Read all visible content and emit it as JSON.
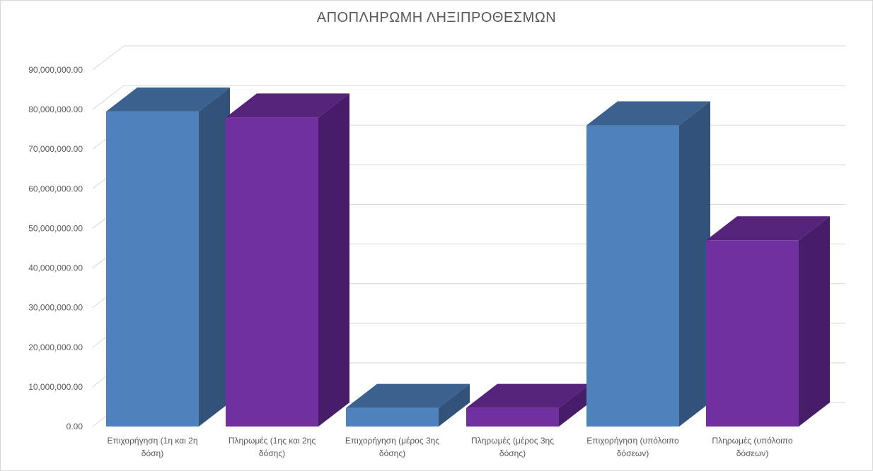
{
  "chart_data": {
    "type": "bar",
    "title": "ΑΠΟΠΛΗΡΩΜΗ  ΛΗΞΙΠΡΟΘΕΣΜΩΝ",
    "xlabel": "",
    "ylabel": "",
    "ylim": [
      0,
      90000000
    ],
    "y_tick_step": 10000000,
    "y_tick_labels": [
      "0.00",
      "10,000,000.00",
      "20,000,000.00",
      "30,000,000.00",
      "40,000,000.00",
      "50,000,000.00",
      "60,000,000.00",
      "70,000,000.00",
      "80,000,000.00",
      "90,000,000.00"
    ],
    "grid": true,
    "legend": "none",
    "style": "3d-column",
    "categories": [
      [
        "Επιχορήγηση (1η και 2η",
        "δόση)"
      ],
      [
        "Πληρωμές (1ης και 2ης",
        "δόσης)"
      ],
      [
        "Επιχορήγηση (μέρος 3ης",
        "δόσης)"
      ],
      [
        "Πληρωμές (μέρος 3ης",
        "δόσης)"
      ],
      [
        "Επιχορήγηση (υπόλοιπο",
        "δόσεων)"
      ],
      [
        "Πληρωμές (υπόλοιπο",
        "δόσεων)"
      ]
    ],
    "values": [
      79500000,
      78000000,
      4700000,
      4700000,
      76000000,
      47000000
    ],
    "bar_colors": [
      "#4f81bd",
      "#7030a0",
      "#4f81bd",
      "#7030a0",
      "#4f81bd",
      "#7030a0"
    ],
    "bar_side_colors": [
      "#325279",
      "#471c69",
      "#325279",
      "#471c69",
      "#325279",
      "#471c69"
    ],
    "bar_top_colors": [
      "#3b628f",
      "#56237b",
      "#3b628f",
      "#56237b",
      "#3b628f",
      "#56237b"
    ]
  }
}
